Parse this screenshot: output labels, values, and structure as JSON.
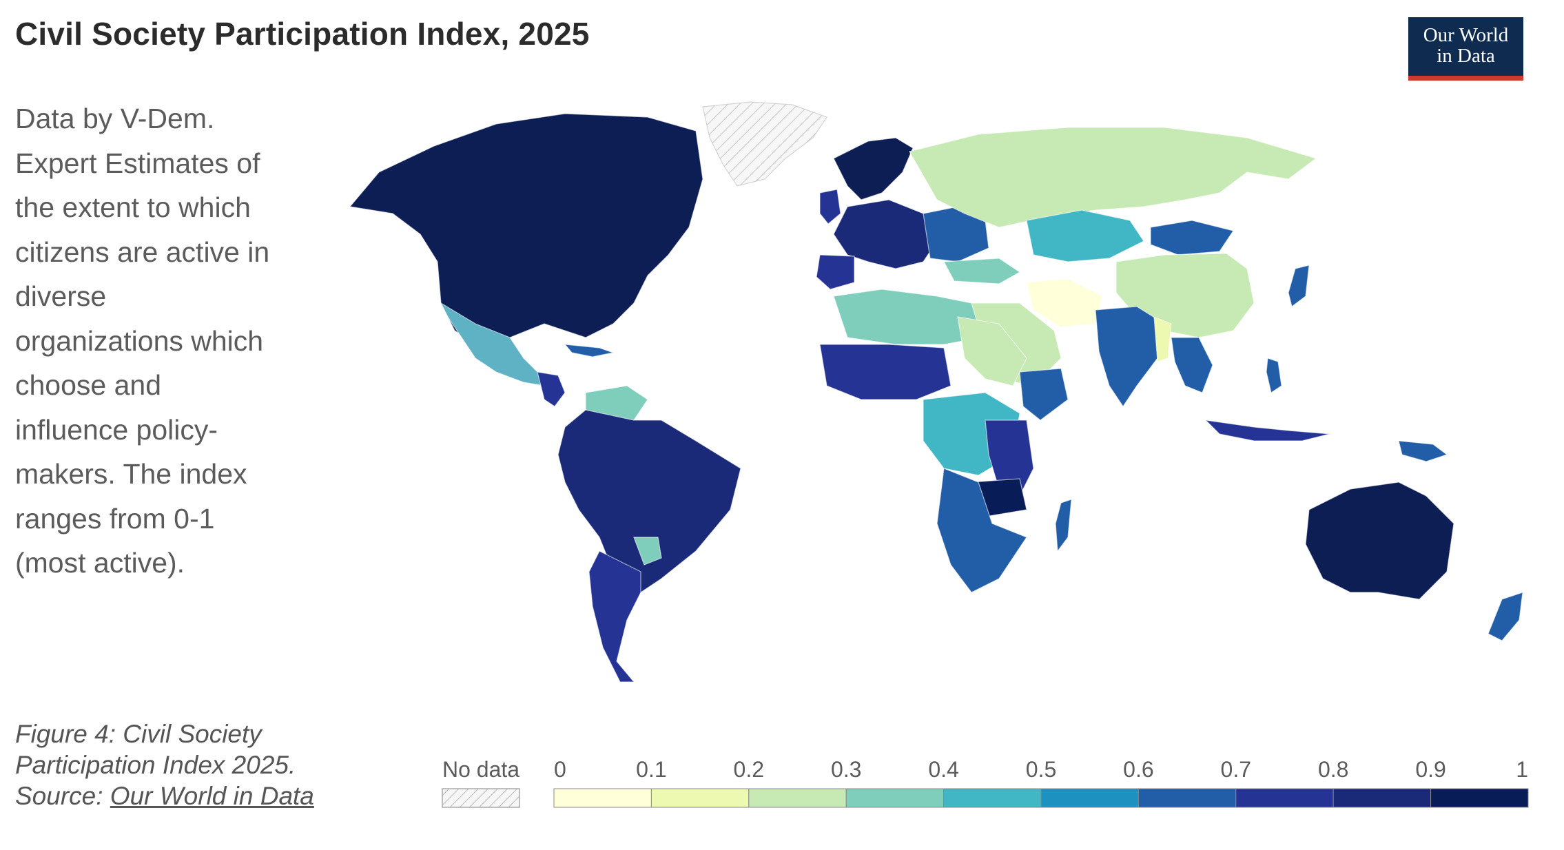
{
  "header": {
    "title": "Civil Society Participation Index, 2025",
    "logo_line1": "Our World",
    "logo_line2": "in Data"
  },
  "subtitle": "Data by V-Dem. Expert Estimates of the extent to which citizens are active in diverse organizations which choose and influence policy-makers. The index ranges from 0-1 (most active).",
  "caption": {
    "line1": "Figure 4: Civil Society",
    "line2": "Participation Index 2025.",
    "source_prefix": "Source: ",
    "source_link": "Our World in Data"
  },
  "legend": {
    "no_data_label": "No data",
    "ticks": [
      "0",
      "0.1",
      "0.2",
      "0.3",
      "0.4",
      "0.5",
      "0.6",
      "0.7",
      "0.8",
      "0.9",
      "1"
    ],
    "colors": [
      "#ffffd9",
      "#edf8b1",
      "#c7e9b4",
      "#7fcdbb",
      "#41b6c4",
      "#1d91c0",
      "#225ea8",
      "#253494",
      "#1b2a78",
      "#081d58"
    ]
  },
  "colors": {
    "brand_navy": "#0f2b4f",
    "brand_red": "#cf3a2f"
  }
}
